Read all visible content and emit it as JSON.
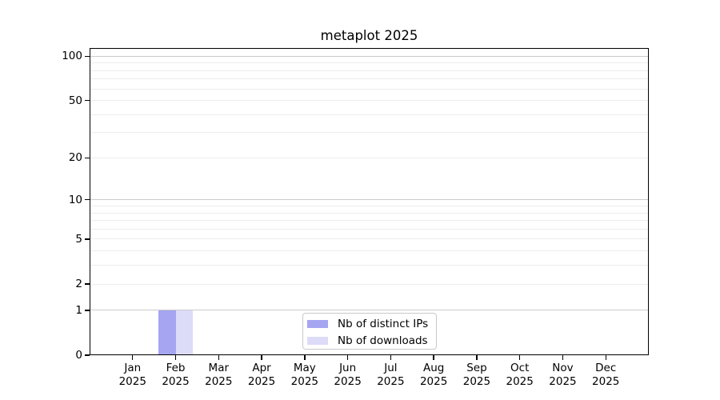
{
  "chart_data": {
    "type": "bar",
    "title": "metaplot 2025",
    "x_tick_months": [
      "Jan",
      "Feb",
      "Mar",
      "Apr",
      "May",
      "Jun",
      "Jul",
      "Aug",
      "Sep",
      "Oct",
      "Nov",
      "Dec"
    ],
    "x_tick_year": "2025",
    "series": [
      {
        "name": "Nb of distinct IPs",
        "color": "#a5a5f2",
        "values": [
          0,
          1,
          0,
          0,
          0,
          0,
          0,
          0,
          0,
          0,
          0,
          0
        ]
      },
      {
        "name": "Nb of downloads",
        "color": "#dcdcf9",
        "values": [
          0,
          1,
          0,
          0,
          0,
          0,
          0,
          0,
          0,
          0,
          0,
          0
        ]
      }
    ],
    "y_scale": "log1p",
    "y_axis_ticks": [
      0,
      1,
      2,
      5,
      10,
      20,
      50,
      100
    ],
    "y_major_gridlines": [
      1,
      10,
      100
    ],
    "y_minor_gridlines": [
      2,
      3,
      4,
      5,
      6,
      7,
      8,
      9,
      20,
      30,
      40,
      50,
      60,
      70,
      80,
      90
    ],
    "y_max": 113.6,
    "grid": "on",
    "legend_position": "lower center",
    "bar_width_fraction": 0.4
  },
  "styles": {
    "background_color": "#ffffff",
    "axis_color": "#000000",
    "text_color": "#000000",
    "major_grid_color": "#cbcbcb",
    "minor_grid_color": "#ededed",
    "legend_border_color": "#c9c9c9"
  }
}
